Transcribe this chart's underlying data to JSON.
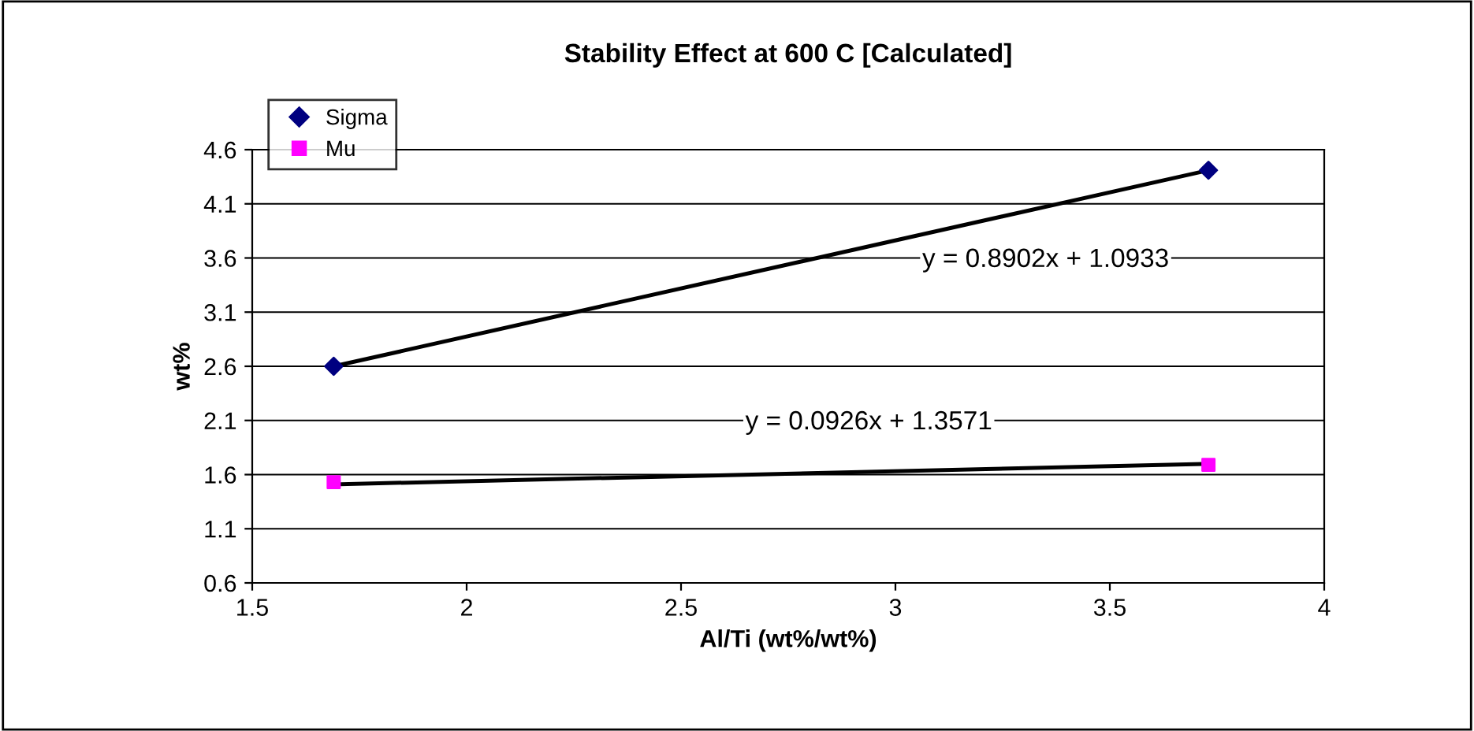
{
  "chart_data": {
    "type": "scatter",
    "title": "Stability Effect at 600 C [Calculated]",
    "xlabel": "Al/Ti (wt%/wt%)",
    "ylabel": "wt%",
    "xlim": [
      1.5,
      4
    ],
    "xticks": [
      1.5,
      2,
      2.5,
      3,
      3.5,
      4
    ],
    "ylim": [
      0.6,
      4.6
    ],
    "yticks": [
      0.6,
      1.1,
      1.6,
      2.1,
      2.6,
      3.1,
      3.6,
      4.1,
      4.6
    ],
    "grid": "y",
    "legend": "top left",
    "x": [
      1.69,
      3.73
    ],
    "series": [
      {
        "type": "line",
        "color": "#000000",
        "values": [
          2.6,
          4.41
        ],
        "marker": "none",
        "line_style": "solid"
      },
      {
        "type": "line",
        "color": "#000000",
        "values": [
          1.51,
          1.7
        ],
        "marker": "none",
        "line_style": "solid"
      },
      {
        "name": "Sigma",
        "color": "#000080",
        "values": [
          2.6,
          4.41
        ],
        "marker": "diamond"
      },
      {
        "name": "Mu",
        "color": "#ff00ff",
        "values": [
          1.53,
          1.69
        ],
        "marker": "square"
      }
    ],
    "annotations": [
      "y = 0.8902x + 1.0933",
      "y = 0.0926x + 1.3571"
    ]
  }
}
